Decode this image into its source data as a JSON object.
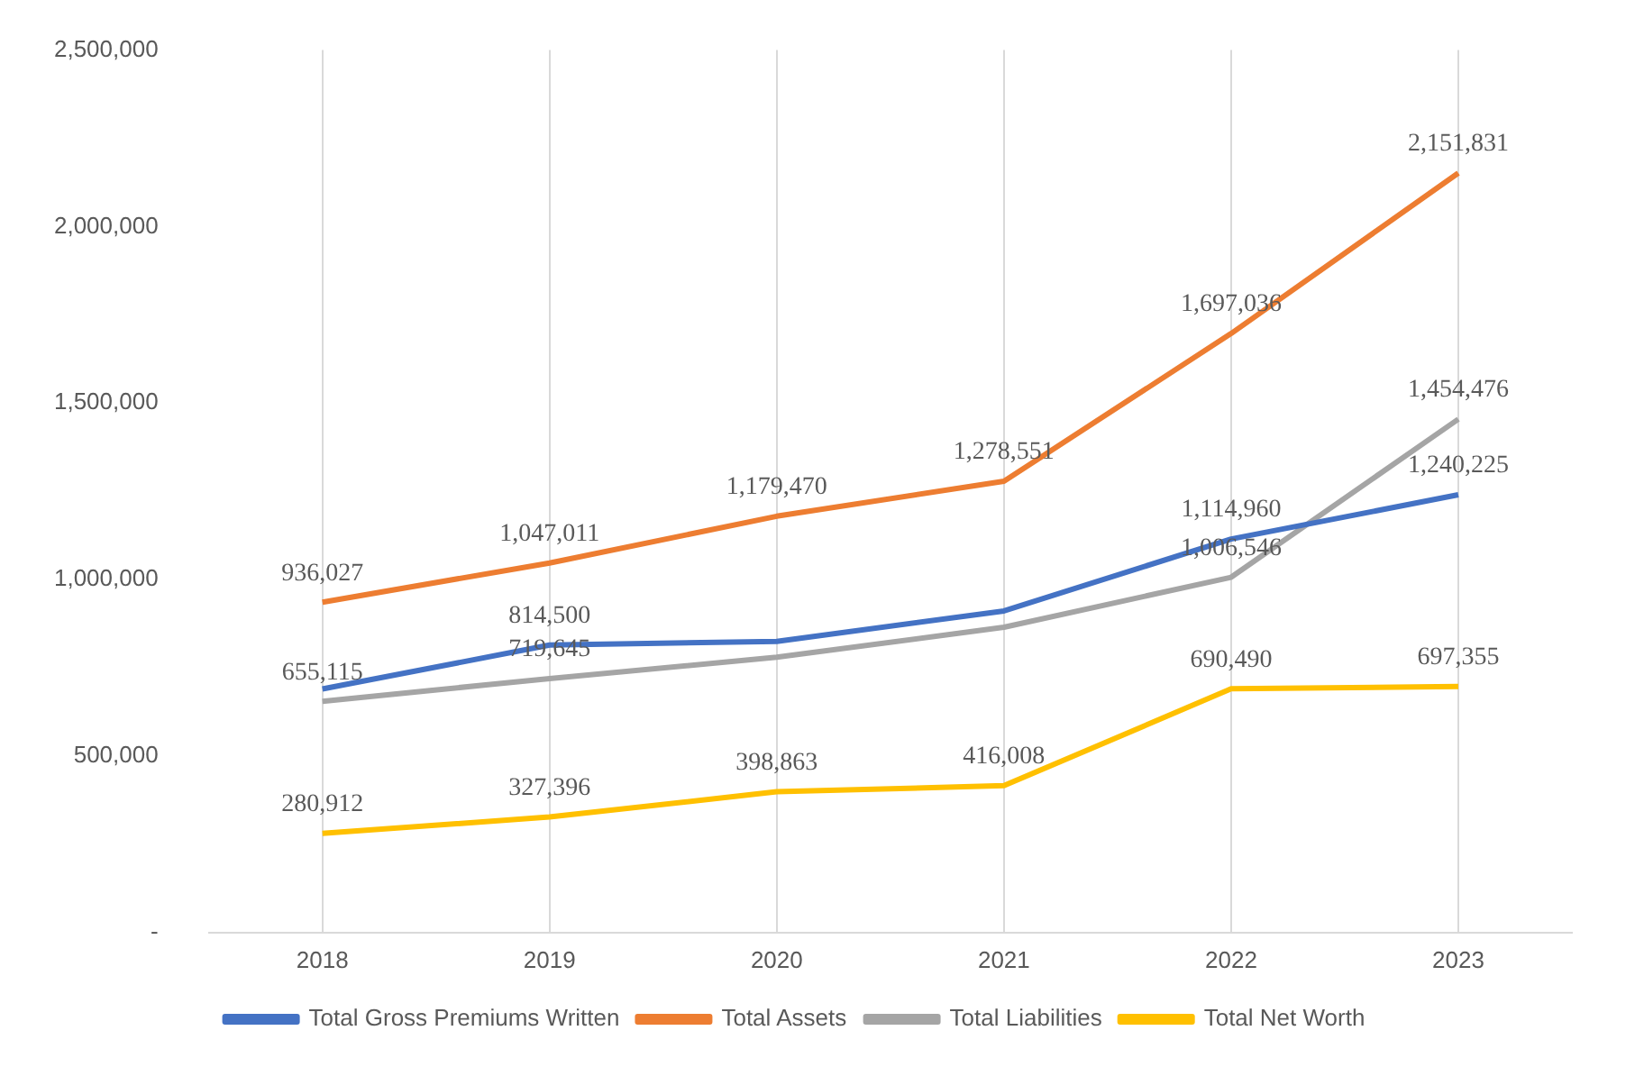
{
  "chart_data": {
    "type": "line",
    "categories": [
      "2018",
      "2019",
      "2020",
      "2021",
      "2022",
      "2023"
    ],
    "series": [
      {
        "name": "Total Gross Premiums Written",
        "color": "#4472c4",
        "values": [
          690000,
          814500,
          825000,
          911000,
          1114960,
          1240225
        ],
        "value_labels": [
          null,
          "814,500",
          null,
          null,
          "1,114,960",
          "1,240,225"
        ]
      },
      {
        "name": "Total Assets",
        "color": "#ed7d31",
        "values": [
          936027,
          1047011,
          1179470,
          1278551,
          1697036,
          2151831
        ],
        "value_labels": [
          "936,027",
          "1,047,011",
          "1,179,470",
          "1,278,551",
          "1,697,036",
          "2,151,831"
        ]
      },
      {
        "name": "Total Liabilities",
        "color": "#a5a5a5",
        "values": [
          655115,
          719645,
          780000,
          865000,
          1006546,
          1454476
        ],
        "value_labels": [
          "655,115",
          "719,645",
          null,
          null,
          "1,006,546",
          "1,454,476"
        ]
      },
      {
        "name": "Total Net Worth",
        "color": "#ffc000",
        "values": [
          280912,
          327396,
          398863,
          416008,
          690490,
          697355
        ],
        "value_labels": [
          "280,912",
          "327,396",
          "398,863",
          "416,008",
          "690,490",
          "697,355"
        ]
      }
    ],
    "ylim": [
      0,
      2500000
    ],
    "yticks": [
      {
        "value": 0,
        "label": "-"
      },
      {
        "value": 500000,
        "label": "500,000"
      },
      {
        "value": 1000000,
        "label": "1,000,000"
      },
      {
        "value": 1500000,
        "label": "1,500,000"
      },
      {
        "value": 2000000,
        "label": "2,000,000"
      },
      {
        "value": 2500000,
        "label": "2,500,000"
      }
    ],
    "grid": "x",
    "legend": "bottom",
    "marker": "none",
    "line_style": "solid"
  }
}
